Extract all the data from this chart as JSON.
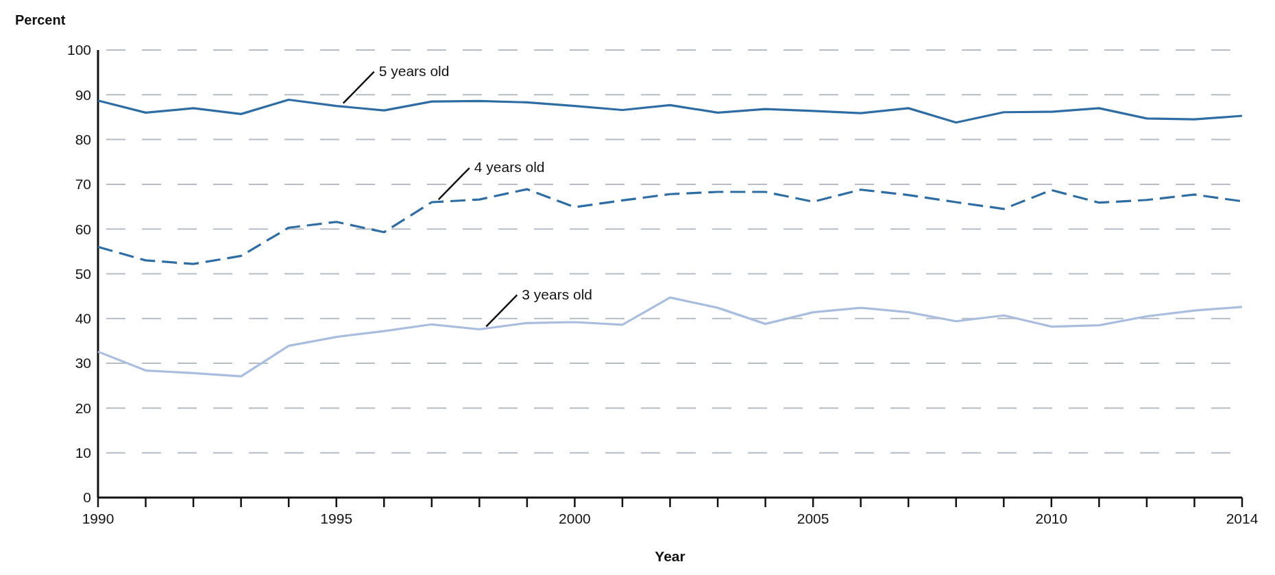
{
  "chart_data": {
    "type": "line",
    "ylabel": "Percent",
    "xlabel": "Year",
    "x": [
      1990,
      1991,
      1992,
      1993,
      1994,
      1995,
      1996,
      1997,
      1998,
      1999,
      2000,
      2001,
      2002,
      2003,
      2004,
      2005,
      2006,
      2007,
      2008,
      2009,
      2010,
      2011,
      2012,
      2013,
      2014
    ],
    "series": [
      {
        "name": "5 years old",
        "color": "#2e6ca4",
        "line_style": "solid",
        "values": [
          88.7,
          86,
          87,
          85.7,
          88.9,
          87.5,
          86.5,
          88.5,
          88.6,
          88.3,
          87.5,
          86.6,
          87.7,
          86,
          86.8,
          86.4,
          85.9,
          87,
          83.8,
          86.1,
          86.2,
          87,
          84.7,
          84.5,
          85.3
        ]
      },
      {
        "name": "4 years old",
        "color": "#2e6ca4",
        "line_style": "dashed",
        "values": [
          56,
          53,
          52.2,
          54,
          60.3,
          61.6,
          59.3,
          66,
          66.6,
          68.9,
          64.9,
          66.4,
          67.8,
          68.3,
          68.3,
          66.1,
          68.8,
          67.6,
          66,
          64.5,
          68.7,
          65.9,
          66.5,
          67.7,
          66.2
        ]
      },
      {
        "name": "3 years old",
        "color": "#a9bddf",
        "line_style": "solid",
        "values": [
          32.6,
          28.4,
          27.8,
          27.1,
          33.9,
          35.9,
          37.2,
          38.7,
          37.6,
          39,
          39.2,
          38.6,
          44.7,
          42.4,
          38.8,
          41.4,
          42.4,
          41.4,
          39.4,
          40.7,
          38.2,
          38.5,
          40.5,
          41.8,
          42.6
        ]
      }
    ],
    "xlim": [
      1990,
      2014
    ],
    "xticks": [
      1990,
      {
        "value": 1991,
        "label": null
      },
      {
        "value": 1992,
        "label": null
      },
      {
        "value": 1993,
        "label": null
      },
      {
        "value": 1994,
        "label": null
      },
      1995,
      {
        "value": 1996,
        "label": null
      },
      {
        "value": 1997,
        "label": null
      },
      {
        "value": 1998,
        "label": null
      },
      {
        "value": 1999,
        "label": null
      },
      2000,
      {
        "value": 2001,
        "label": null
      },
      {
        "value": 2002,
        "label": null
      },
      {
        "value": 2003,
        "label": null
      },
      {
        "value": 2004,
        "label": null
      },
      2005,
      {
        "value": 2006,
        "label": null
      },
      {
        "value": 2007,
        "label": null
      },
      {
        "value": 2008,
        "label": null
      },
      {
        "value": 2009,
        "label": null
      },
      2010,
      {
        "value": 2011,
        "label": null
      },
      {
        "value": 2012,
        "label": null
      },
      {
        "value": 2013,
        "label": null
      },
      2014
    ],
    "ylim": [
      0,
      100
    ],
    "yticks": [
      0,
      10,
      20,
      30,
      40,
      50,
      60,
      70,
      80,
      90,
      100
    ],
    "grid": "y",
    "legend": false,
    "marker": "none"
  }
}
